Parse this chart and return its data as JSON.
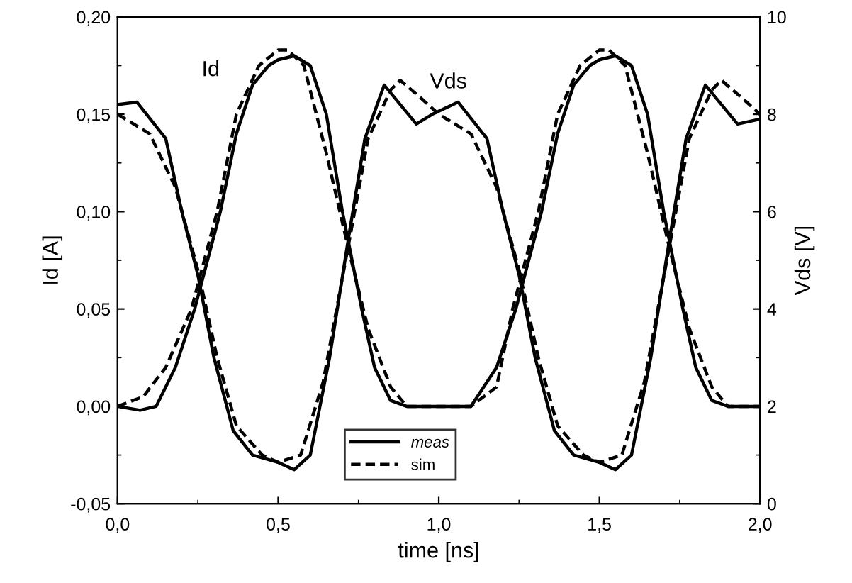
{
  "chart_data": {
    "type": "line",
    "xlabel": "time [ns]",
    "ylabel": "Id [A]",
    "y2label": "Vds [V]",
    "xlim": [
      0,
      2
    ],
    "xticks": [
      {
        "value": 0,
        "label": "0,0"
      },
      {
        "value": 0.5,
        "label": "0,5"
      },
      {
        "value": 1,
        "label": "1,0"
      },
      {
        "value": 1.5,
        "label": "1,5"
      },
      {
        "value": 2,
        "label": "2,0"
      }
    ],
    "ylim": [
      -0.05,
      0.2
    ],
    "yticks": [
      {
        "value": -0.05,
        "label": "-0,05"
      },
      {
        "value": 0,
        "label": "0,00"
      },
      {
        "value": 0.05,
        "label": "0,05"
      },
      {
        "value": 0.1,
        "label": "0,10"
      },
      {
        "value": 0.15,
        "label": "0,15"
      },
      {
        "value": 0.2,
        "label": "0,20"
      }
    ],
    "y2lim": [
      0,
      10
    ],
    "y2ticks": [
      0,
      2,
      4,
      6,
      8,
      10
    ],
    "legend": "bottom",
    "grid": false,
    "annotations": [
      "Id",
      "Vds"
    ],
    "series": [
      {
        "name": "meas",
        "color": "#000000",
        "line_style": "solid",
        "x": [
          0,
          0.07,
          0.12,
          0.18,
          0.24,
          0.32,
          0.37,
          0.42,
          0.47,
          0.5,
          0.55,
          0.6,
          0.65,
          0.7,
          0.76,
          0.8,
          0.85,
          0.9,
          1.1,
          1.18,
          1.24,
          1.32,
          1.37,
          1.42,
          1.47,
          1.5,
          1.55,
          1.6,
          1.65,
          1.7,
          1.76,
          1.8,
          1.85,
          1.9,
          2.0
        ],
        "values": [
          0,
          -0.002,
          0,
          0.02,
          0.05,
          0.1,
          0.14,
          0.165,
          0.175,
          0.178,
          0.18,
          0.175,
          0.15,
          0.1,
          0.05,
          0.02,
          0.003,
          0,
          0,
          0.02,
          0.05,
          0.1,
          0.14,
          0.165,
          0.175,
          0.178,
          0.18,
          0.175,
          0.15,
          0.1,
          0.05,
          0.02,
          0.003,
          0,
          0
        ]
      },
      {
        "name": "sim",
        "color": "#000000",
        "line_style": "dashed",
        "x": [
          0,
          0.08,
          0.15,
          0.23,
          0.31,
          0.37,
          0.44,
          0.5,
          0.53,
          0.58,
          0.65,
          0.72,
          0.78,
          0.85,
          0.9,
          1.1,
          1.18,
          1.23,
          1.31,
          1.37,
          1.44,
          1.5,
          1.53,
          1.58,
          1.65,
          1.72,
          1.78,
          1.85,
          1.9,
          2.0
        ],
        "values": [
          0,
          0.005,
          0.02,
          0.05,
          0.1,
          0.15,
          0.175,
          0.183,
          0.183,
          0.175,
          0.13,
          0.08,
          0.04,
          0.01,
          0,
          0,
          0.01,
          0.05,
          0.1,
          0.15,
          0.175,
          0.183,
          0.183,
          0.175,
          0.13,
          0.08,
          0.04,
          0.01,
          0,
          0
        ]
      },
      {
        "axis": "y2",
        "color": "#000000",
        "line_style": "solid",
        "x": [
          0,
          0.06,
          0.15,
          0.2,
          0.25,
          0.3,
          0.36,
          0.42,
          0.5,
          0.55,
          0.6,
          0.66,
          0.72,
          0.77,
          0.83,
          0.88,
          0.93,
          0.98,
          1.06,
          1.15,
          1.2,
          1.25,
          1.3,
          1.36,
          1.42,
          1.5,
          1.55,
          1.6,
          1.66,
          1.72,
          1.77,
          1.83,
          1.88,
          1.93,
          2.0
        ],
        "values": [
          8.2,
          8.25,
          7.5,
          6,
          4.7,
          3,
          1.5,
          1,
          0.85,
          0.7,
          1,
          3,
          5.5,
          7.5,
          8.6,
          8.2,
          7.8,
          8,
          8.25,
          7.5,
          6,
          4.7,
          3,
          1.5,
          1,
          0.85,
          0.7,
          1,
          3,
          5.5,
          7.5,
          8.6,
          8.2,
          7.8,
          7.9
        ]
      },
      {
        "axis": "y2",
        "color": "#000000",
        "line_style": "dashed",
        "x": [
          0,
          0.1,
          0.18,
          0.25,
          0.31,
          0.37,
          0.45,
          0.5,
          0.57,
          0.64,
          0.71,
          0.78,
          0.85,
          0.88,
          0.95,
          1.0,
          1.1,
          1.18,
          1.25,
          1.31,
          1.37,
          1.45,
          1.5,
          1.57,
          1.64,
          1.71,
          1.78,
          1.85,
          1.88,
          1.95,
          2.0
        ],
        "values": [
          8,
          7.6,
          6.5,
          4.8,
          3,
          1.6,
          1,
          0.85,
          1,
          2.5,
          5,
          7.5,
          8.5,
          8.7,
          8.3,
          8,
          7.6,
          6.5,
          4.8,
          3,
          1.6,
          1,
          0.85,
          1,
          2.5,
          5,
          7.5,
          8.5,
          8.7,
          8.3,
          8
        ]
      }
    ]
  }
}
